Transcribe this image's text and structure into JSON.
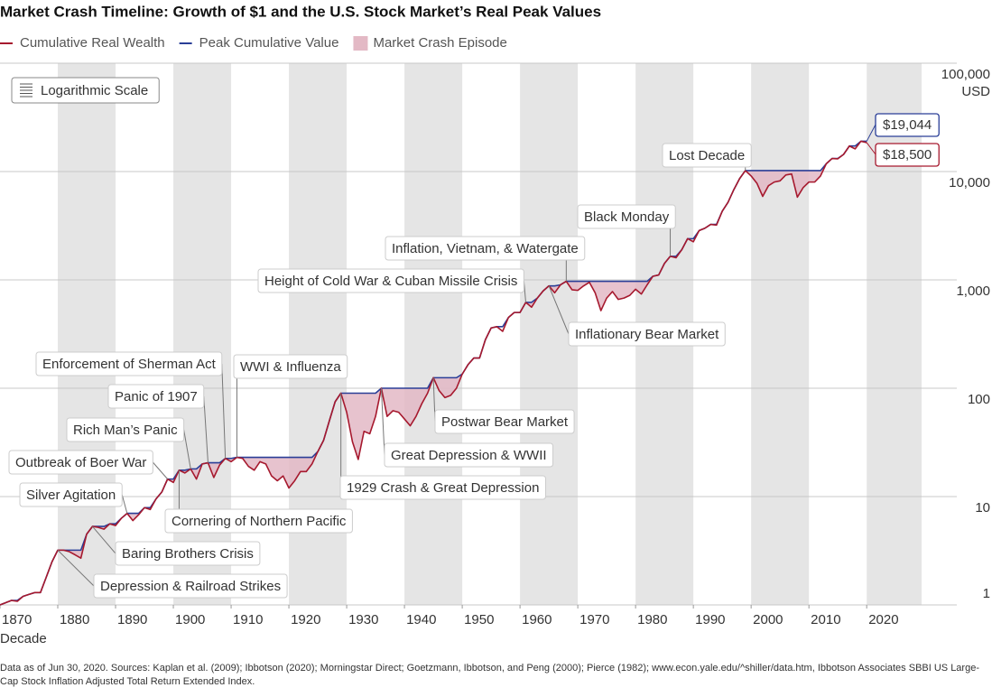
{
  "chart_data": {
    "type": "line",
    "title": "Market Crash Timeline: Growth of $1 and the U.S. Stock Market’s Real Peak Values",
    "x_label": "Decade",
    "y_unit": "USD",
    "scale_button": "Logarithmic Scale",
    "log_y": true,
    "grid": true,
    "bands": true,
    "band_color": "#e5e5e5",
    "crash_legend": "Market Crash Episode",
    "crash_color": "#e3b9c5",
    "xlim": [
      1870,
      2029.5
    ],
    "xticks": [
      1870,
      1880,
      1890,
      1900,
      1910,
      1920,
      1930,
      1940,
      1950,
      1960,
      1970,
      1980,
      1990,
      2000,
      2010,
      2020
    ],
    "ylim": [
      1,
      100000
    ],
    "yticks": [
      1,
      10,
      100,
      {
        "value": 1000,
        "label": "1,000"
      },
      {
        "value": 10000,
        "label": "10,000"
      },
      {
        "value": 100000,
        "label": "100,000"
      }
    ],
    "x": [
      1870,
      1871,
      1872,
      1873,
      1874,
      1875,
      1876,
      1877,
      1878,
      1879,
      1880,
      1881,
      1882,
      1883,
      1884,
      1885,
      1886,
      1887,
      1888,
      1889,
      1890,
      1891,
      1892,
      1893,
      1894,
      1895,
      1896,
      1897,
      1898,
      1899,
      1900,
      1901,
      1902,
      1903,
      1904,
      1905,
      1906,
      1907,
      1908,
      1909,
      1910,
      1911,
      1912,
      1913,
      1914,
      1915,
      1916,
      1917,
      1918,
      1919,
      1920,
      1921,
      1922,
      1923,
      1924,
      1925,
      1926,
      1927,
      1928,
      1929,
      1930,
      1931,
      1932,
      1933,
      1934,
      1935,
      1936,
      1937,
      1938,
      1939,
      1940,
      1941,
      1942,
      1943,
      1944,
      1945,
      1946,
      1947,
      1948,
      1949,
      1950,
      1951,
      1952,
      1953,
      1954,
      1955,
      1956,
      1957,
      1958,
      1959,
      1960,
      1961,
      1962,
      1963,
      1964,
      1965,
      1966,
      1967,
      1968,
      1969,
      1970,
      1971,
      1972,
      1973,
      1974,
      1975,
      1976,
      1977,
      1978,
      1979,
      1980,
      1981,
      1982,
      1983,
      1984,
      1985,
      1986,
      1987,
      1988,
      1989,
      1990,
      1991,
      1992,
      1993,
      1994,
      1995,
      1996,
      1997,
      1998,
      1999,
      2000,
      2001,
      2002,
      2003,
      2004,
      2005,
      2006,
      2007,
      2008,
      2009,
      2010,
      2011,
      2012,
      2013,
      2014,
      2015,
      2016,
      2017,
      2018,
      2019,
      2020
    ],
    "series": [
      {
        "name": "Cumulative Real Wealth",
        "color": "#a6192e",
        "end_label": "$18,500",
        "values": [
          1.0,
          1.05,
          1.1,
          1.08,
          1.2,
          1.25,
          1.3,
          1.3,
          1.8,
          2.5,
          3.2,
          3.2,
          3.1,
          2.9,
          2.7,
          4.5,
          5.3,
          5.2,
          5.0,
          5.6,
          5.4,
          6.3,
          7.0,
          6.0,
          6.8,
          7.9,
          7.6,
          9.5,
          11.0,
          14.5,
          13.5,
          17.5,
          16.5,
          18.0,
          14.5,
          20.0,
          20.5,
          15.0,
          19.5,
          22.5,
          21.0,
          23.0,
          22.5,
          19.0,
          17.5,
          21.0,
          20.0,
          15.5,
          14.0,
          15.5,
          12.0,
          14.0,
          17.0,
          17.0,
          20.0,
          26,
          33,
          50,
          75,
          90,
          60,
          32,
          22,
          40,
          38,
          55,
          100,
          55,
          62,
          60,
          52,
          45,
          55,
          72,
          90,
          125,
          95,
          82,
          86,
          100,
          135,
          165,
          190,
          190,
          280,
          360,
          370,
          335,
          450,
          500,
          500,
          620,
          560,
          680,
          790,
          880,
          760,
          900,
          970,
          810,
          800,
          880,
          950,
          760,
          520,
          680,
          780,
          660,
          680,
          720,
          820,
          740,
          900,
          1080,
          1110,
          1420,
          1650,
          1600,
          1900,
          2400,
          2250,
          2850,
          3000,
          3250,
          3200,
          4300,
          5200,
          6800,
          8600,
          10200,
          9100,
          7800,
          5900,
          7400,
          8000,
          8200,
          9300,
          9500,
          5800,
          7100,
          8000,
          8000,
          9100,
          11800,
          13200,
          13100,
          14400,
          17200,
          16200,
          19044,
          18500
        ]
      },
      {
        "name": "Peak Cumulative Value",
        "color": "#2a3e97",
        "end_label": "$19,044",
        "values": [
          1.0,
          1.05,
          1.1,
          1.1,
          1.2,
          1.25,
          1.3,
          1.3,
          1.8,
          2.5,
          3.2,
          3.2,
          3.2,
          3.2,
          3.2,
          4.5,
          5.3,
          5.3,
          5.3,
          5.6,
          5.6,
          6.3,
          7.0,
          7.0,
          7.0,
          7.9,
          7.9,
          9.5,
          11.0,
          14.5,
          14.5,
          17.5,
          17.5,
          18.0,
          18.0,
          20.0,
          20.5,
          20.5,
          20.5,
          22.5,
          22.5,
          23,
          23,
          23,
          23,
          23,
          23,
          23,
          23,
          23,
          23,
          23,
          23,
          23,
          23,
          26,
          33,
          50,
          75,
          90,
          90,
          90,
          90,
          90,
          90,
          90,
          100,
          100,
          100,
          100,
          100,
          100,
          100,
          100,
          100,
          125,
          125,
          125,
          125,
          125,
          135,
          165,
          190,
          190,
          280,
          360,
          370,
          370,
          450,
          500,
          500,
          620,
          620,
          680,
          790,
          880,
          880,
          900,
          970,
          970,
          970,
          970,
          970,
          970,
          970,
          970,
          970,
          970,
          970,
          970,
          970,
          970,
          970,
          1080,
          1110,
          1420,
          1650,
          1650,
          1900,
          2400,
          2400,
          2850,
          3000,
          3250,
          3250,
          4300,
          5200,
          6800,
          8600,
          10200,
          10200,
          10200,
          10200,
          10200,
          10200,
          10200,
          10200,
          10200,
          10200,
          10200,
          10200,
          10200,
          10200,
          11800,
          13200,
          13200,
          14400,
          17200,
          17200,
          19044,
          19044
        ]
      }
    ],
    "episodes": [
      {
        "label": "Depression & Railroad Strikes",
        "start": 1880,
        "end": 1885
      },
      {
        "label": "Baring Brothers Crisis",
        "start": 1886,
        "end": 1889
      },
      {
        "label": "Silver Agitation",
        "start": 1892,
        "end": 1895
      },
      {
        "label": "Outbreak of Boer War",
        "start": 1899,
        "end": 1901
      },
      {
        "label": "Cornering of Northern Pacific",
        "start": 1901,
        "end": 1903
      },
      {
        "label": "Rich Man’s Panic",
        "start": 1903,
        "end": 1905
      },
      {
        "label": "Panic of 1907",
        "start": 1906,
        "end": 1909
      },
      {
        "label": "Enforcement of Sherman Act",
        "start": 1909,
        "end": 1911
      },
      {
        "label": "WWI & Influenza",
        "start": 1911,
        "end": 1925
      },
      {
        "label": "1929 Crash & Great Depression",
        "start": 1929,
        "end": 1936
      },
      {
        "label": "Great Depression & WWII",
        "start": 1936,
        "end": 1945
      },
      {
        "label": "Postwar Bear Market",
        "start": 1945,
        "end": 1950
      },
      {
        "label": "Height of Cold War & Cuban Missile Crisis",
        "start": 1961,
        "end": 1963
      },
      {
        "label": "Inflationary Bear Market",
        "start": 1965,
        "end": 1967
      },
      {
        "label": "Inflation, Vietnam, & Watergate",
        "start": 1968,
        "end": 1983
      },
      {
        "label": "Black Monday",
        "start": 1986,
        "end": 1988
      },
      {
        "label": "Lost Decade",
        "start": 1999,
        "end": 2013
      }
    ],
    "footnote": "Data as of Jun 30, 2020. Sources: Kaplan et al. (2009); Ibbotson (2020); Morningstar Direct; Goetzmann, Ibbotson, and Peng (2000); Pierce (1982); www.econ.yale.edu/^shiller/data.htm, Ibbotson Associates SBBI US Large-Cap Stock Inflation Adjusted Total Return Extended Index."
  }
}
